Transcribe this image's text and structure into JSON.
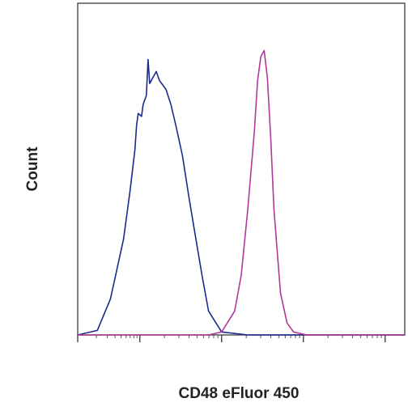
{
  "chart_data": {
    "type": "line",
    "title": "",
    "xlabel": "CD48 eFluor 450",
    "ylabel": "Count",
    "x_scale": "log",
    "xlim": [
      0,
      1
    ],
    "ylim": [
      0,
      1
    ],
    "grid": false,
    "legend": "none",
    "series": [
      {
        "color": "#1c2a8c",
        "x": [
          0.0,
          0.06,
          0.1,
          0.14,
          0.16,
          0.175,
          0.18,
          0.185,
          0.195,
          0.2,
          0.21,
          0.215,
          0.22,
          0.24,
          0.25,
          0.27,
          0.285,
          0.3,
          0.32,
          0.34,
          0.36,
          0.38,
          0.4,
          0.44,
          0.52,
          0.6,
          1.0
        ],
        "y": [
          0.0,
          0.015,
          0.12,
          0.32,
          0.48,
          0.62,
          0.7,
          0.74,
          0.73,
          0.77,
          0.8,
          0.92,
          0.84,
          0.88,
          0.85,
          0.82,
          0.77,
          0.7,
          0.6,
          0.46,
          0.33,
          0.2,
          0.08,
          0.01,
          0.0,
          0.0,
          0.0
        ]
      },
      {
        "color": "#b0389a",
        "x": [
          0.0,
          0.4,
          0.44,
          0.48,
          0.5,
          0.52,
          0.54,
          0.55,
          0.56,
          0.57,
          0.58,
          0.59,
          0.6,
          0.62,
          0.64,
          0.66,
          0.7,
          1.0
        ],
        "y": [
          0.0,
          0.0,
          0.01,
          0.08,
          0.2,
          0.42,
          0.68,
          0.85,
          0.93,
          0.95,
          0.86,
          0.66,
          0.42,
          0.14,
          0.04,
          0.01,
          0.0,
          0.0
        ]
      }
    ]
  }
}
